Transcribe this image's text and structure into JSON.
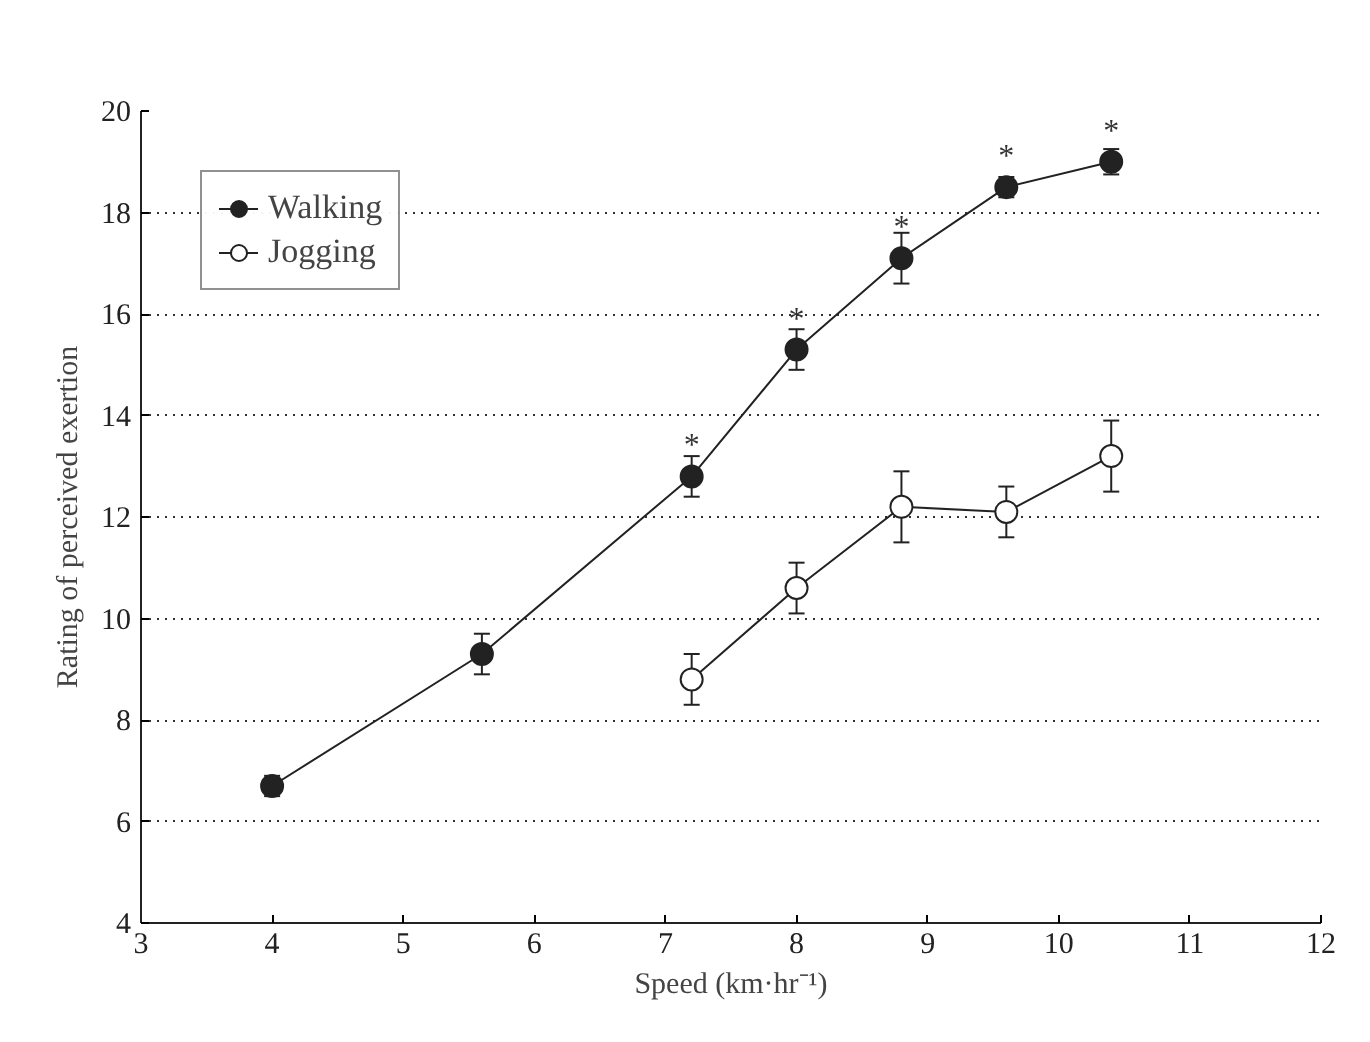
{
  "chart_data": {
    "type": "line",
    "xlabel": "Speed (km·hr⁻¹)",
    "ylabel": "Rating of perceived exertion",
    "xlim": [
      3,
      12
    ],
    "xticks": [
      3,
      4,
      5,
      6,
      7,
      8,
      9,
      10,
      11,
      12
    ],
    "ylim": [
      4,
      20
    ],
    "yticks": [
      4,
      6,
      8,
      10,
      12,
      14,
      16,
      18,
      20
    ],
    "grid": "y",
    "legend": "top left",
    "line_style": "solid",
    "series": [
      {
        "name": "Walking",
        "color": "#222222",
        "marker": "circle",
        "x": [
          4,
          5.6,
          7.2,
          8,
          8.8,
          9.6,
          10.4
        ],
        "values": [
          6.7,
          9.3,
          12.8,
          15.3,
          17.1,
          18.5,
          19.0
        ],
        "errors": [
          0.2,
          0.4,
          0.4,
          0.4,
          0.5,
          0.2,
          0.25
        ]
      },
      {
        "name": "Jogging",
        "color": "#222222",
        "marker": "circle",
        "x": [
          7.2,
          8,
          8.8,
          9.6,
          10.4
        ],
        "values": [
          8.8,
          10.6,
          12.2,
          12.1,
          13.2
        ],
        "errors": [
          0.5,
          0.5,
          0.7,
          0.5,
          0.7
        ]
      }
    ],
    "annotations": [
      {
        "text": "*",
        "x": 7.2,
        "y": 12.8
      },
      {
        "text": "*",
        "x": 8,
        "y": 15.3
      },
      {
        "text": "*",
        "x": 8.8,
        "y": 17.1
      },
      {
        "text": "*",
        "x": 9.6,
        "y": 18.5
      },
      {
        "text": "*",
        "x": 10.4,
        "y": 19.0
      }
    ]
  }
}
